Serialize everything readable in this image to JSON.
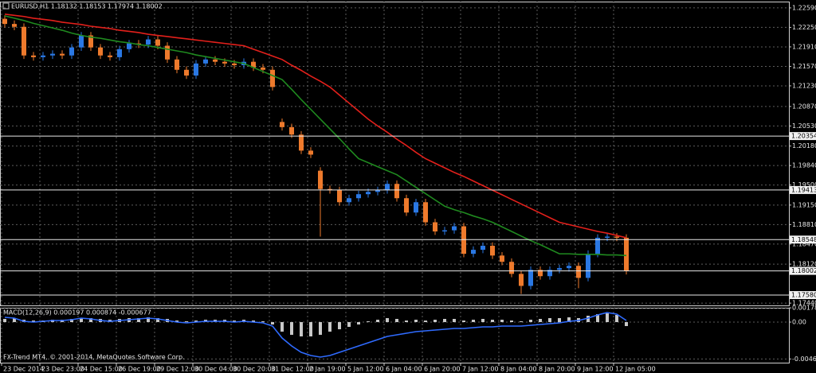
{
  "chart_data": [
    {
      "type": "candlestick",
      "title": "EURUSD,H1 1.18132 1.18153 1.17974 1.18002",
      "categories": [
        "23 Dec 2014",
        null,
        null,
        null,
        "23 Dec 23:00",
        null,
        null,
        null,
        "24 Dec 15:00",
        null,
        null,
        null,
        "26 Dec 19:00",
        null,
        null,
        null,
        "29 Dec 12:00",
        null,
        null,
        null,
        "30 Dec 04:00",
        null,
        null,
        null,
        "30 Dec 20:00",
        null,
        null,
        null,
        "31 Dec 12:00",
        null,
        null,
        null,
        "2 Jan 19:00",
        null,
        null,
        null,
        "5 Jan 12:00",
        null,
        null,
        null,
        "6 Jan 04:00",
        null,
        null,
        null,
        "6 Jan 20:00",
        null,
        null,
        null,
        "7 Jan 12:00",
        null,
        null,
        null,
        "8 Jan 04:00",
        null,
        null,
        null,
        "8 Jan 20:00",
        null,
        null,
        null,
        "9 Jan 12:00",
        null,
        null,
        null,
        "12 Jan 05:00",
        null
      ],
      "open": [
        1.224,
        1.2231,
        1.2226,
        1.2176,
        1.2173,
        1.2176,
        1.2179,
        1.2176,
        1.219,
        1.2211,
        1.219,
        1.2176,
        1.2173,
        1.2187,
        1.2197,
        1.2195,
        1.2204,
        1.2193,
        1.2169,
        1.2151,
        1.2141,
        1.2162,
        1.2169,
        1.2165,
        1.2162,
        1.2159,
        1.2165,
        1.2155,
        1.2151,
        1.206,
        1.2051,
        1.2038,
        1.201,
        1.1975,
        1.1943,
        1.1941,
        1.192,
        1.1927,
        1.1934,
        1.1938,
        1.1941,
        1.1952,
        1.1927,
        1.1902,
        1.192,
        1.1885,
        1.1869,
        1.1871,
        1.1878,
        1.183,
        1.1837,
        1.1844,
        1.1827,
        1.1816,
        1.1795,
        1.1774,
        1.1802,
        1.1791,
        1.1802,
        1.1805,
        1.1809,
        1.1788,
        1.183,
        1.1858,
        1.186,
        1.1858
      ],
      "high": [
        1.2246,
        1.2237,
        1.2232,
        1.2182,
        1.2182,
        1.2185,
        1.2185,
        1.2196,
        1.2217,
        1.2217,
        1.2196,
        1.2182,
        1.2193,
        1.2203,
        1.2203,
        1.221,
        1.221,
        1.2199,
        1.2175,
        1.2157,
        1.2168,
        1.2175,
        1.2175,
        1.2171,
        1.2168,
        1.2171,
        1.2171,
        1.2161,
        1.2157,
        1.2066,
        1.2057,
        1.2044,
        1.2016,
        1.1981,
        1.1949,
        1.1947,
        1.1933,
        1.194,
        1.1944,
        1.1947,
        1.1958,
        1.1958,
        1.1933,
        1.1926,
        1.1926,
        1.1891,
        1.1877,
        1.1884,
        1.1884,
        1.1843,
        1.185,
        1.185,
        1.1833,
        1.1822,
        1.1801,
        1.1808,
        1.1808,
        1.1808,
        1.1811,
        1.1815,
        1.1815,
        1.1836,
        1.1864,
        1.1866,
        1.1866,
        1.1864
      ],
      "low": [
        1.2225,
        1.222,
        1.217,
        1.2167,
        1.2167,
        1.217,
        1.217,
        1.217,
        1.2184,
        1.2184,
        1.217,
        1.2167,
        1.2167,
        1.2181,
        1.2189,
        1.2189,
        1.2187,
        1.2163,
        1.2145,
        1.2135,
        1.2135,
        1.2156,
        1.2159,
        1.2156,
        1.2153,
        1.2153,
        1.2149,
        1.2145,
        1.2115,
        1.2045,
        1.2032,
        1.2004,
        1.1997,
        1.186,
        1.1935,
        1.1914,
        1.1914,
        1.1921,
        1.1928,
        1.1932,
        1.1935,
        1.1921,
        1.1896,
        1.1896,
        1.1879,
        1.1863,
        1.1863,
        1.1865,
        1.1824,
        1.1824,
        1.1831,
        1.1821,
        1.181,
        1.1789,
        1.176,
        1.1768,
        1.1785,
        1.1785,
        1.1796,
        1.1799,
        1.177,
        1.1782,
        1.1824,
        1.1852,
        1.1852,
        1.1794
      ],
      "close": [
        1.2231,
        1.2226,
        1.2176,
        1.2173,
        1.2176,
        1.2179,
        1.2176,
        1.219,
        1.2211,
        1.219,
        1.2176,
        1.2173,
        1.2187,
        1.2197,
        1.2195,
        1.2204,
        1.2193,
        1.2169,
        1.2151,
        1.2141,
        1.2162,
        1.2169,
        1.2165,
        1.2162,
        1.2159,
        1.2165,
        1.2155,
        1.2151,
        1.2121,
        1.2051,
        1.2038,
        1.201,
        1.2003,
        1.1943,
        1.1941,
        1.192,
        1.1927,
        1.1934,
        1.1938,
        1.1941,
        1.1952,
        1.1927,
        1.1902,
        1.192,
        1.1885,
        1.1869,
        1.1871,
        1.1878,
        1.183,
        1.1837,
        1.1844,
        1.1827,
        1.1816,
        1.1795,
        1.1774,
        1.1802,
        1.1791,
        1.1802,
        1.1805,
        1.1809,
        1.1788,
        1.183,
        1.1858,
        1.186,
        1.1858,
        1.18002
      ],
      "up_color": "#2a78e4",
      "down_color": "#ee7a2c",
      "lines": [
        {
          "color": "#e3201b",
          "values": [
            1.2248,
            1.2246,
            1.2244,
            1.2241,
            1.2239,
            1.2237,
            1.2234,
            1.2232,
            1.223,
            1.2227,
            1.2225,
            1.2223,
            1.222,
            1.2218,
            1.2216,
            1.2213,
            1.2211,
            1.2209,
            1.2207,
            1.2205,
            1.2203,
            1.2201,
            1.2199,
            1.2197,
            1.2195,
            1.2193,
            1.2187,
            1.2181,
            1.2175,
            1.2169,
            1.2159,
            1.215,
            1.214,
            1.2131,
            1.2121,
            1.2107,
            1.2093,
            1.2079,
            1.2065,
            1.2053,
            1.2042,
            1.203,
            1.2019,
            1.2007,
            1.1996,
            1.1988,
            1.198,
            1.1972,
            1.1965,
            1.1957,
            1.1949,
            1.1941,
            1.1933,
            1.1925,
            1.1917,
            1.1909,
            1.1901,
            1.1893,
            1.1885,
            1.1881,
            1.1877,
            1.1873,
            1.1869,
            1.1866,
            1.1862,
            1.1858
          ]
        },
        {
          "color": "#1f8a1f",
          "values": [
            1.2245,
            1.2241,
            1.2237,
            1.2232,
            1.2228,
            1.2224,
            1.222,
            1.2215,
            1.2211,
            1.2208,
            1.2206,
            1.2203,
            1.22,
            1.2198,
            1.2195,
            1.2193,
            1.219,
            1.2187,
            1.2184,
            1.2181,
            1.2177,
            1.2174,
            1.2171,
            1.2168,
            1.2165,
            1.2162,
            1.2155,
            1.2148,
            1.2141,
            1.2134,
            1.2117,
            1.2099,
            1.2082,
            1.2065,
            1.2048,
            1.2031,
            1.2013,
            1.1996,
            1.1989,
            1.1982,
            1.1975,
            1.1968,
            1.1957,
            1.1946,
            1.1935,
            1.1924,
            1.1913,
            1.1907,
            1.1902,
            1.1896,
            1.1891,
            1.1885,
            1.1877,
            1.1869,
            1.1861,
            1.1853,
            1.1846,
            1.1838,
            1.183,
            1.183,
            1.1829,
            1.1829,
            1.1829,
            1.1828,
            1.1828,
            1.1827
          ]
        }
      ],
      "levels": [
        1.20354,
        1.19413,
        1.18548,
        1.18002,
        {
          "value": 1.1758,
          "label": "1.17580"
        }
      ],
      "ylim": [
        1.174,
        1.227
      ],
      "yticks": [
        {
          "value": 1.2259,
          "label": "1.22590"
        },
        {
          "value": 1.2225,
          "label": "1.22250"
        },
        {
          "value": 1.2191,
          "label": "1.21910"
        },
        {
          "value": 1.2157,
          "label": "1.21570"
        },
        {
          "value": 1.2123,
          "label": "1.21230"
        },
        {
          "value": 1.2087,
          "label": "1.20870"
        },
        {
          "value": 1.2053,
          "label": "1.20530"
        },
        {
          "value": 1.2018,
          "label": "1.20180"
        },
        {
          "value": 1.1984,
          "label": "1.19840"
        },
        {
          "value": 1.195,
          "label": "1.19500"
        },
        {
          "value": 1.1915,
          "label": "1.19150"
        },
        {
          "value": 1.1881,
          "label": "1.18810"
        },
        {
          "value": 1.1847,
          "label": "1.18470"
        },
        {
          "value": 1.1812,
          "label": "1.18120"
        },
        {
          "value": 1.1744,
          "label": "1.17440"
        }
      ],
      "grid": true
    },
    {
      "type": "bar",
      "title": "MACD(12,26,9) 0.000197 0.000874 -0.000677",
      "note": "FX-Trend MT4, © 2001-2014, MetaQuotes Software Corp.",
      "color": "#c8c8c8",
      "values": [
        0.0004,
        0.0005,
        0.0003,
        0.0002,
        0.0002,
        0.0003,
        0.0003,
        0.0004,
        0.0005,
        0.0005,
        0.0004,
        0.0003,
        0.0004,
        0.0005,
        0.0005,
        0.0006,
        0.0005,
        0.0004,
        0.0002,
        0.0001,
        0.0002,
        0.0003,
        0.0003,
        0.0003,
        0.0002,
        0.0003,
        0.0002,
        0.0001,
        -0.0003,
        -0.0012,
        -0.0016,
        -0.0018,
        -0.0018,
        -0.0016,
        -0.0012,
        -0.0009,
        -0.0006,
        -0.0003,
        0.0001,
        0.0003,
        0.0005,
        0.0004,
        0.0002,
        0.0003,
        0.0002,
        0.0003,
        0.0004,
        0.0004,
        0.0002,
        0.0003,
        0.0004,
        0.0003,
        0.0003,
        0.0002,
        0.0001,
        0.0003,
        0.0004,
        0.0005,
        0.0005,
        0.0006,
        0.0005,
        0.0008,
        0.001,
        0.0011,
        0.0009,
        -0.0005
      ],
      "lines": [
        {
          "color": "#2f6bff",
          "values": [
            0.0006,
            0.0005,
            0.0001,
            0,
            0.0001,
            0.0002,
            0.0002,
            0.0003,
            0.0005,
            0.0004,
            0.0002,
            0.0001,
            0.0002,
            0.0003,
            0.0004,
            0.0005,
            0.0004,
            0.0002,
            0,
            -0.0001,
            0,
            0.0001,
            0.0001,
            0.0001,
            0,
            0.0001,
            0,
            -0.0001,
            -0.0005,
            -0.002,
            -0.003,
            -0.0038,
            -0.0042,
            -0.0044,
            -0.0042,
            -0.0038,
            -0.0034,
            -0.003,
            -0.0026,
            -0.0022,
            -0.0018,
            -0.0016,
            -0.0014,
            -0.0012,
            -0.0011,
            -0.001,
            -0.0009,
            -0.0008,
            -0.0008,
            -0.0007,
            -0.0006,
            -0.0006,
            -0.0005,
            -0.0005,
            -0.0005,
            -0.0004,
            -0.0003,
            -0.0002,
            -0.0001,
            0.0001,
            0.0002,
            0.0005,
            0.0009,
            0.0012,
            0.001,
            0.0002
          ]
        }
      ],
      "ylim": [
        -0.0051,
        0.0018
      ],
      "yticks": [
        0.001788,
        {
          "value": 0,
          "label": "0.00"
        },
        -0.004633
      ],
      "grid": true
    }
  ]
}
